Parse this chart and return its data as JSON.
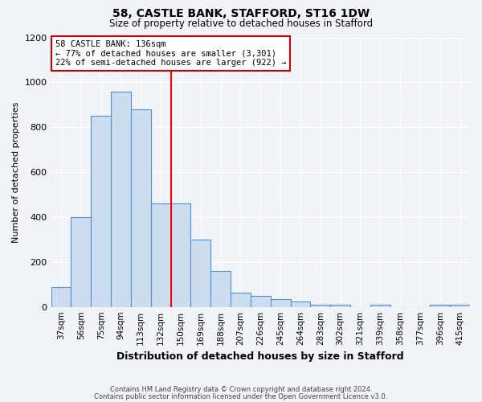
{
  "title": "58, CASTLE BANK, STAFFORD, ST16 1DW",
  "subtitle": "Size of property relative to detached houses in Stafford",
  "xlabel": "Distribution of detached houses by size in Stafford",
  "ylabel": "Number of detached properties",
  "categories": [
    "37sqm",
    "56sqm",
    "75sqm",
    "94sqm",
    "113sqm",
    "132sqm",
    "150sqm",
    "169sqm",
    "188sqm",
    "207sqm",
    "226sqm",
    "245sqm",
    "264sqm",
    "283sqm",
    "302sqm",
    "321sqm",
    "339sqm",
    "358sqm",
    "377sqm",
    "396sqm",
    "415sqm"
  ],
  "values": [
    90,
    400,
    850,
    960,
    880,
    460,
    460,
    300,
    160,
    65,
    50,
    35,
    25,
    10,
    8,
    0,
    10,
    0,
    0,
    10,
    10
  ],
  "bar_color": "#ccddf0",
  "bar_edge_color": "#5590c8",
  "property_label": "58 CASTLE BANK: 136sqm",
  "annotation_line1": "← 77% of detached houses are smaller (3,301)",
  "annotation_line2": "22% of semi-detached houses are larger (922) →",
  "annotation_box_color": "#ffffff",
  "annotation_box_edge": "#cc0000",
  "footer1": "Contains HM Land Registry data © Crown copyright and database right 2024.",
  "footer2": "Contains public sector information licensed under the Open Government Licence v3.0.",
  "bg_color": "#f0f4f8",
  "ylim": [
    0,
    1200
  ],
  "yticks": [
    0,
    200,
    400,
    600,
    800,
    1000,
    1200
  ],
  "red_line_index": 5,
  "title_fontsize": 10,
  "subtitle_fontsize": 8.5,
  "ylabel_fontsize": 8,
  "xlabel_fontsize": 9
}
